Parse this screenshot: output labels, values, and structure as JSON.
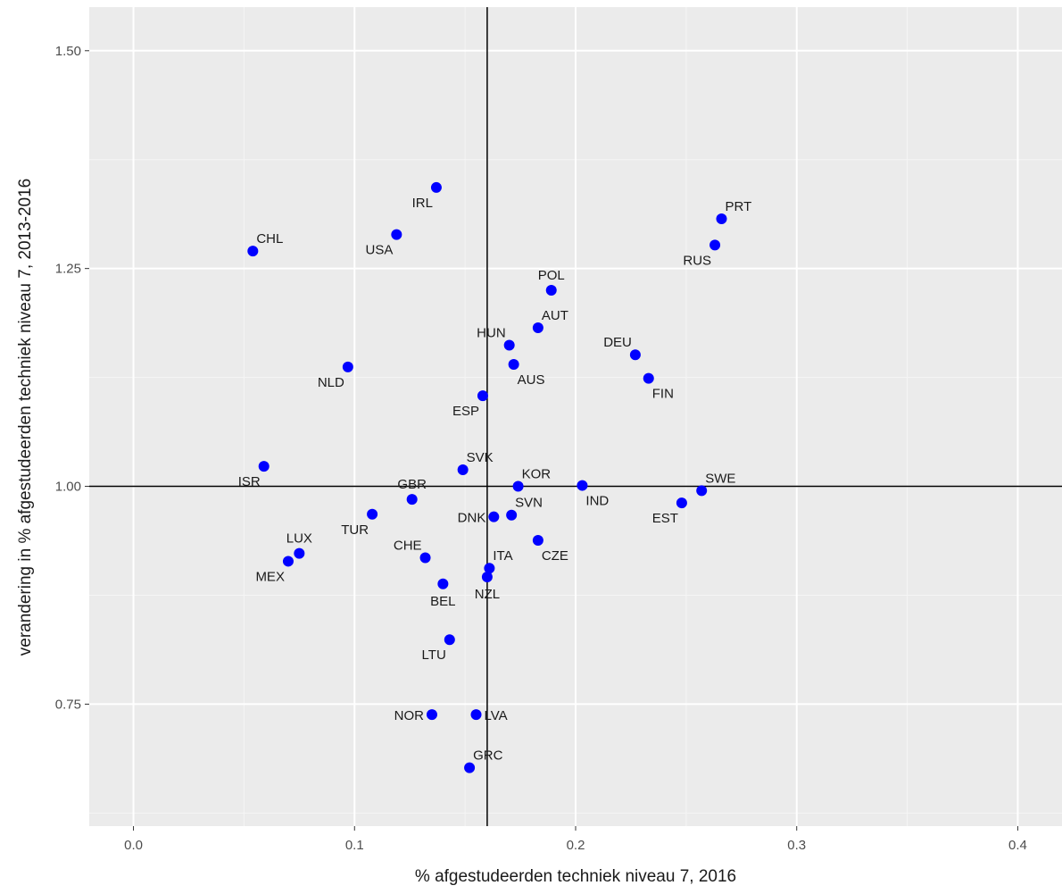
{
  "chart_data": {
    "type": "scatter",
    "title": "",
    "xlabel": "% afgestudeerden techniek niveau 7, 2016",
    "ylabel": "verandering in % afgestudeerden techniek niveau 7, 2013-2016",
    "xlim": [
      -0.02,
      0.42
    ],
    "ylim": [
      0.61,
      1.55
    ],
    "x_ticks": [
      0.0,
      0.1,
      0.2,
      0.3,
      0.4
    ],
    "x_tick_labels": [
      "0.0",
      "0.1",
      "0.2",
      "0.3",
      "0.4"
    ],
    "y_ticks": [
      0.75,
      1.0,
      1.25,
      1.5
    ],
    "y_tick_labels": [
      "0.75",
      "1.00",
      "1.25",
      "1.50"
    ],
    "grid": true,
    "reference_lines": {
      "vline_x": 0.16,
      "hline_y": 1.0
    },
    "point_color": "#0000ff",
    "points": [
      {
        "label": "IRL",
        "x": 0.137,
        "y": 1.343,
        "label_pos": "bl"
      },
      {
        "label": "CHL",
        "x": 0.054,
        "y": 1.27,
        "label_pos": "tr"
      },
      {
        "label": "USA",
        "x": 0.119,
        "y": 1.289,
        "label_pos": "bl"
      },
      {
        "label": "PRT",
        "x": 0.266,
        "y": 1.307,
        "label_pos": "tr"
      },
      {
        "label": "RUS",
        "x": 0.263,
        "y": 1.277,
        "label_pos": "bl"
      },
      {
        "label": "POL",
        "x": 0.189,
        "y": 1.225,
        "label_pos": "t"
      },
      {
        "label": "AUT",
        "x": 0.183,
        "y": 1.182,
        "label_pos": "tr"
      },
      {
        "label": "HUN",
        "x": 0.17,
        "y": 1.162,
        "label_pos": "tl"
      },
      {
        "label": "DEU",
        "x": 0.227,
        "y": 1.151,
        "label_pos": "tl"
      },
      {
        "label": "AUS",
        "x": 0.172,
        "y": 1.14,
        "label_pos": "br"
      },
      {
        "label": "NLD",
        "x": 0.097,
        "y": 1.137,
        "label_pos": "bl"
      },
      {
        "label": "FIN",
        "x": 0.233,
        "y": 1.124,
        "label_pos": "br"
      },
      {
        "label": "ESP",
        "x": 0.158,
        "y": 1.104,
        "label_pos": "bl"
      },
      {
        "label": "ISR",
        "x": 0.059,
        "y": 1.023,
        "label_pos": "bl"
      },
      {
        "label": "SVK",
        "x": 0.149,
        "y": 1.019,
        "label_pos": "tr"
      },
      {
        "label": "KOR",
        "x": 0.174,
        "y": 1.0,
        "label_pos": "tr"
      },
      {
        "label": "IND",
        "x": 0.203,
        "y": 1.001,
        "label_pos": "br"
      },
      {
        "label": "SWE",
        "x": 0.257,
        "y": 0.995,
        "label_pos": "tr"
      },
      {
        "label": "GBR",
        "x": 0.126,
        "y": 0.985,
        "label_pos": "t"
      },
      {
        "label": "EST",
        "x": 0.248,
        "y": 0.981,
        "label_pos": "bl"
      },
      {
        "label": "TUR",
        "x": 0.108,
        "y": 0.968,
        "label_pos": "bl"
      },
      {
        "label": "SVN",
        "x": 0.171,
        "y": 0.967,
        "label_pos": "tr"
      },
      {
        "label": "DNK",
        "x": 0.163,
        "y": 0.965,
        "label_pos": "l"
      },
      {
        "label": "CZE",
        "x": 0.183,
        "y": 0.938,
        "label_pos": "br"
      },
      {
        "label": "LUX",
        "x": 0.075,
        "y": 0.923,
        "label_pos": "t"
      },
      {
        "label": "CHE",
        "x": 0.132,
        "y": 0.918,
        "label_pos": "tl"
      },
      {
        "label": "MEX",
        "x": 0.07,
        "y": 0.914,
        "label_pos": "bl"
      },
      {
        "label": "ITA",
        "x": 0.161,
        "y": 0.906,
        "label_pos": "tr"
      },
      {
        "label": "NZL",
        "x": 0.16,
        "y": 0.896,
        "label_pos": "b"
      },
      {
        "label": "BEL",
        "x": 0.14,
        "y": 0.888,
        "label_pos": "b"
      },
      {
        "label": "LTU",
        "x": 0.143,
        "y": 0.824,
        "label_pos": "bl"
      },
      {
        "label": "NOR",
        "x": 0.135,
        "y": 0.738,
        "label_pos": "l"
      },
      {
        "label": "LVA",
        "x": 0.155,
        "y": 0.738,
        "label_pos": "r"
      },
      {
        "label": "GRC",
        "x": 0.152,
        "y": 0.677,
        "label_pos": "tr"
      }
    ]
  }
}
